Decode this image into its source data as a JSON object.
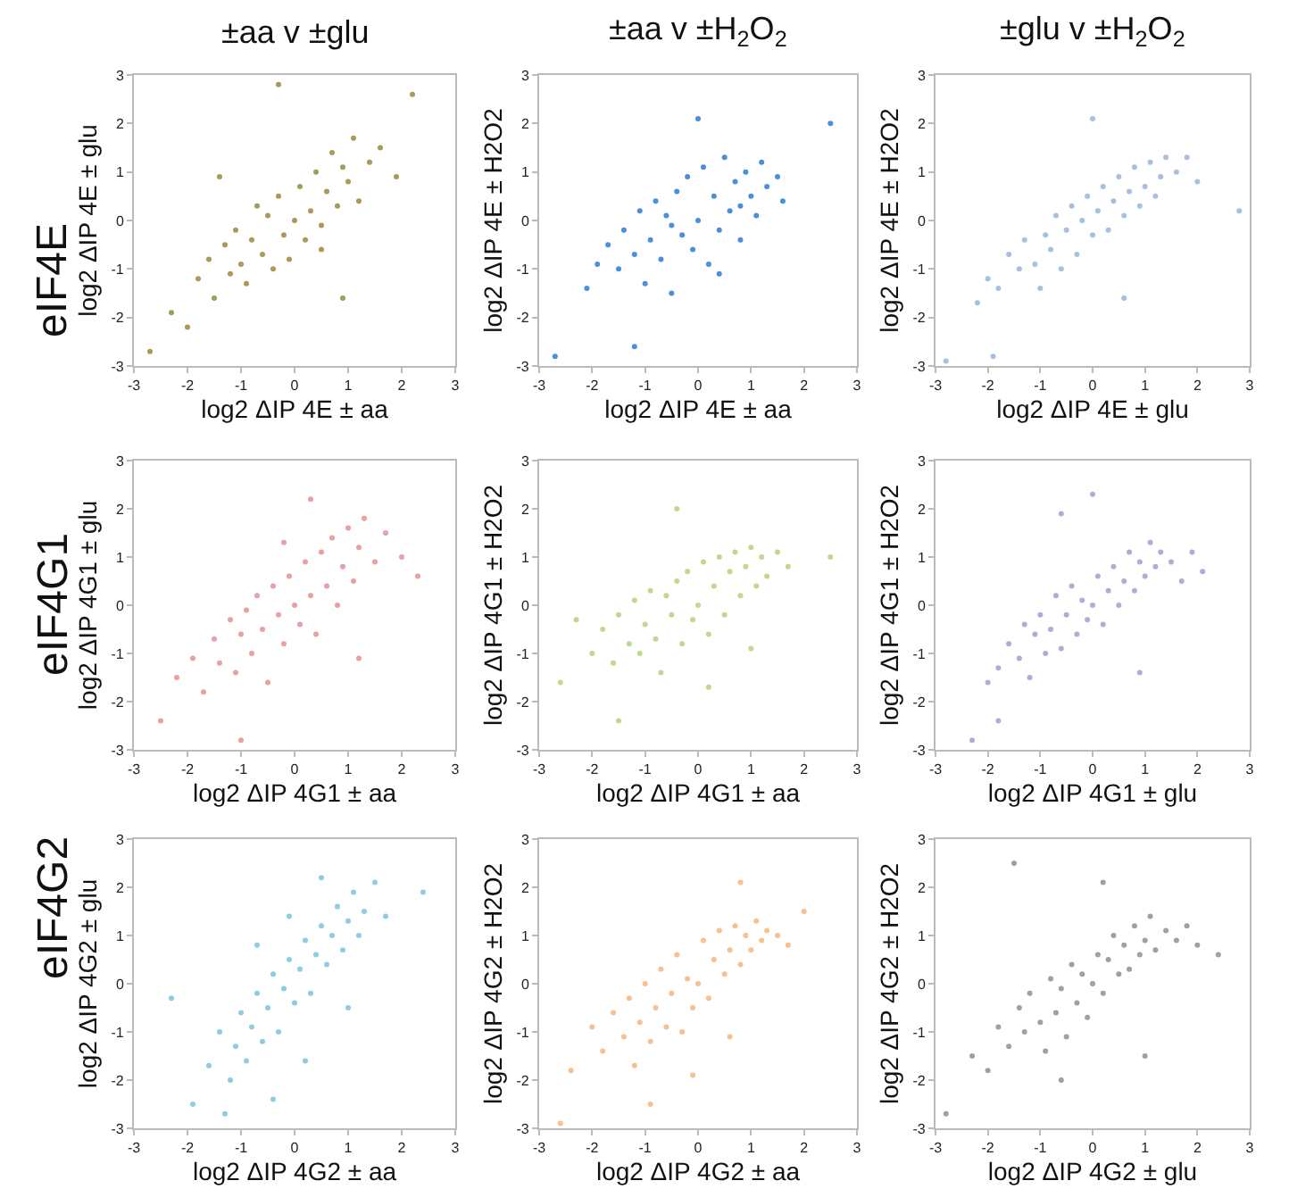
{
  "chart_data": [
    {
      "type": "scatter",
      "title": "±aa v ±glu",
      "annotations": [
        "eIF4E"
      ],
      "xlabel": "log2 ΔIP 4E ± aa",
      "ylabel": "log2 ΔIP 4E ± glu",
      "color": "#a89a5a",
      "marker": "circle",
      "xlim": [
        -3,
        3
      ],
      "ylim": [
        -3,
        3
      ],
      "xticks": [
        -3,
        -2,
        -1,
        0,
        1,
        2,
        3
      ],
      "yticks": [
        -3,
        -2,
        -1,
        0,
        1,
        2,
        3
      ],
      "x": [
        -2.7,
        -2.3,
        -2.0,
        -1.8,
        -1.6,
        -1.5,
        -1.3,
        -1.2,
        -1.1,
        -1.0,
        -0.9,
        -0.8,
        -0.7,
        -0.6,
        -0.5,
        -0.4,
        -0.3,
        -0.2,
        -0.1,
        0.0,
        0.1,
        0.2,
        0.3,
        0.4,
        0.5,
        0.6,
        0.7,
        0.8,
        0.9,
        1.0,
        1.1,
        1.2,
        1.4,
        1.6,
        1.9,
        2.2,
        -0.3,
        0.9,
        -1.4,
        0.5
      ],
      "values": [
        -2.7,
        -1.9,
        -2.2,
        -1.2,
        -0.8,
        -1.6,
        -0.5,
        -1.1,
        -0.2,
        -0.9,
        -1.3,
        -0.4,
        0.3,
        -0.7,
        0.1,
        -1.0,
        0.5,
        -0.3,
        -0.8,
        0.0,
        0.7,
        -0.4,
        0.2,
        1.0,
        -0.1,
        0.6,
        1.4,
        0.3,
        1.1,
        0.8,
        1.7,
        0.4,
        1.2,
        1.5,
        0.9,
        2.6,
        2.8,
        -1.6,
        0.9,
        -0.6
      ]
    },
    {
      "type": "scatter",
      "title": "±aa v ±H$_{2}$O$_{2}$",
      "xlabel": "log2 ΔIP 4E ± aa",
      "ylabel": "log2 ΔIP 4E ± H2O2",
      "color": "#4a90d9",
      "marker": "circle",
      "xlim": [
        -3,
        3
      ],
      "ylim": [
        -3,
        3
      ],
      "xticks": [
        -3,
        -2,
        -1,
        0,
        1,
        2,
        3
      ],
      "yticks": [
        -3,
        -2,
        -1,
        0,
        1,
        2,
        3
      ],
      "x": [
        -2.7,
        -2.1,
        -1.9,
        -1.7,
        -1.5,
        -1.4,
        -1.2,
        -1.1,
        -1.0,
        -0.9,
        -0.8,
        -0.7,
        -0.6,
        -0.5,
        -0.4,
        -0.3,
        -0.2,
        -0.1,
        0.0,
        0.1,
        0.2,
        0.3,
        0.4,
        0.5,
        0.6,
        0.7,
        0.8,
        0.9,
        1.0,
        1.1,
        1.2,
        1.3,
        1.5,
        1.6,
        2.5,
        -1.2,
        0.0,
        0.4,
        -0.5,
        0.8
      ],
      "values": [
        -2.8,
        -1.4,
        -0.9,
        -0.5,
        -1.0,
        -0.2,
        -0.7,
        0.2,
        -1.3,
        -0.4,
        0.4,
        -0.8,
        0.1,
        -1.5,
        0.6,
        -0.3,
        0.9,
        -0.6,
        0.0,
        1.1,
        -0.9,
        0.5,
        -0.2,
        1.3,
        0.2,
        0.8,
        -0.4,
        1.0,
        0.5,
        0.1,
        1.2,
        0.7,
        0.9,
        0.4,
        2.0,
        -2.6,
        2.1,
        -1.1,
        -0.1,
        0.3
      ]
    },
    {
      "type": "scatter",
      "title": "±glu v ±H$_{2}$O$_{2}$",
      "xlabel": "log2 ΔIP 4E ± glu",
      "ylabel": "log2 ΔIP 4E ± H2O2",
      "color": "#a8c0e0",
      "marker": "circle",
      "xlim": [
        -3,
        3
      ],
      "ylim": [
        -3,
        3
      ],
      "xticks": [
        -3,
        -2,
        -1,
        0,
        1,
        2,
        3
      ],
      "yticks": [
        -3,
        -2,
        -1,
        0,
        1,
        2,
        3
      ],
      "x": [
        -2.8,
        -2.2,
        -2.0,
        -1.8,
        -1.6,
        -1.4,
        -1.3,
        -1.1,
        -1.0,
        -0.9,
        -0.8,
        -0.7,
        -0.6,
        -0.5,
        -0.4,
        -0.3,
        -0.2,
        -0.1,
        0.0,
        0.1,
        0.2,
        0.3,
        0.4,
        0.5,
        0.6,
        0.7,
        0.8,
        0.9,
        1.0,
        1.1,
        1.2,
        1.3,
        1.4,
        1.6,
        1.8,
        2.0,
        -1.9,
        0.6,
        0.0,
        2.8
      ],
      "values": [
        -2.9,
        -1.7,
        -1.2,
        -1.4,
        -0.7,
        -1.0,
        -0.4,
        -0.9,
        -1.4,
        -0.3,
        -0.6,
        0.1,
        -1.0,
        -0.2,
        0.3,
        -0.7,
        0.0,
        0.5,
        -0.3,
        0.2,
        0.7,
        -0.2,
        0.4,
        0.9,
        0.1,
        0.6,
        1.1,
        0.3,
        0.7,
        1.2,
        0.5,
        0.9,
        1.3,
        1.0,
        1.3,
        0.8,
        -2.8,
        -1.6,
        2.1,
        0.2
      ]
    },
    {
      "type": "scatter",
      "annotations": [
        "eIF4G1"
      ],
      "xlabel": "log2 ΔIP 4G1 ± aa",
      "ylabel": "log2 ΔIP 4G1 ± glu",
      "color": "#e8a0a0",
      "marker": "circle",
      "xlim": [
        -3,
        3
      ],
      "ylim": [
        -3,
        3
      ],
      "xticks": [
        -3,
        -2,
        -1,
        0,
        1,
        2,
        3
      ],
      "yticks": [
        -3,
        -2,
        -1,
        0,
        1,
        2,
        3
      ],
      "x": [
        -2.5,
        -2.2,
        -1.9,
        -1.7,
        -1.5,
        -1.4,
        -1.2,
        -1.1,
        -1.0,
        -0.9,
        -0.8,
        -0.7,
        -0.6,
        -0.5,
        -0.4,
        -0.3,
        -0.2,
        -0.1,
        0.0,
        0.1,
        0.2,
        0.3,
        0.4,
        0.5,
        0.6,
        0.7,
        0.8,
        0.9,
        1.0,
        1.1,
        1.2,
        1.3,
        1.5,
        1.7,
        2.0,
        2.3,
        -1.0,
        1.2,
        0.3,
        -0.2
      ],
      "values": [
        -2.4,
        -1.5,
        -1.1,
        -1.8,
        -0.7,
        -1.2,
        -0.3,
        -1.4,
        -0.6,
        -0.1,
        -1.0,
        0.2,
        -0.5,
        -1.6,
        0.4,
        -0.2,
        -0.8,
        0.6,
        0.0,
        -0.4,
        0.9,
        0.2,
        -0.6,
        1.1,
        0.4,
        1.4,
        0.0,
        0.8,
        1.6,
        0.5,
        1.2,
        1.8,
        0.9,
        1.5,
        1.0,
        0.6,
        -2.8,
        -1.1,
        2.2,
        1.3
      ]
    },
    {
      "type": "scatter",
      "xlabel": "log2 ΔIP 4G1 ± aa",
      "ylabel": "log2 ΔIP 4G1 ± H2O2",
      "color": "#c0d890",
      "marker": "circle",
      "xlim": [
        -3,
        3
      ],
      "ylim": [
        -3,
        3
      ],
      "xticks": [
        -3,
        -2,
        -1,
        0,
        1,
        2,
        3
      ],
      "yticks": [
        -3,
        -2,
        -1,
        0,
        1,
        2,
        3
      ],
      "x": [
        -2.6,
        -2.0,
        -1.8,
        -1.6,
        -1.5,
        -1.3,
        -1.2,
        -1.1,
        -1.0,
        -0.9,
        -0.8,
        -0.7,
        -0.6,
        -0.5,
        -0.4,
        -0.3,
        -0.2,
        -0.1,
        0.0,
        0.1,
        0.2,
        0.3,
        0.4,
        0.5,
        0.6,
        0.7,
        0.8,
        0.9,
        1.0,
        1.1,
        1.2,
        1.3,
        1.5,
        1.7,
        2.5,
        -1.5,
        -0.4,
        0.2,
        1.0,
        -2.3
      ],
      "values": [
        -1.6,
        -1.0,
        -0.5,
        -1.2,
        -0.2,
        -0.8,
        0.1,
        -1.0,
        -0.4,
        0.3,
        -0.7,
        -1.4,
        0.2,
        -0.2,
        0.5,
        -0.8,
        0.7,
        -0.3,
        0.0,
        0.9,
        -0.6,
        0.4,
        1.0,
        -0.2,
        0.7,
        1.1,
        0.2,
        0.8,
        1.2,
        0.4,
        1.0,
        0.6,
        1.1,
        0.8,
        1.0,
        -2.4,
        2.0,
        -1.7,
        -0.9,
        -0.3
      ]
    },
    {
      "type": "scatter",
      "xlabel": "log2 ΔIP 4G1 ± glu",
      "ylabel": "log2 ΔIP 4G1 ± H2O2",
      "color": "#b8a8d8",
      "marker": "circle",
      "xlim": [
        -3,
        3
      ],
      "ylim": [
        -3,
        3
      ],
      "xticks": [
        -3,
        -2,
        -1,
        0,
        1,
        2,
        3
      ],
      "yticks": [
        -3,
        -2,
        -1,
        0,
        1,
        2,
        3
      ],
      "x": [
        -2.3,
        -2.0,
        -1.8,
        -1.6,
        -1.4,
        -1.3,
        -1.2,
        -1.1,
        -1.0,
        -0.9,
        -0.8,
        -0.7,
        -0.6,
        -0.5,
        -0.4,
        -0.3,
        -0.2,
        -0.1,
        0.0,
        0.1,
        0.2,
        0.3,
        0.4,
        0.5,
        0.6,
        0.7,
        0.8,
        0.9,
        1.0,
        1.1,
        1.2,
        1.3,
        1.5,
        1.7,
        1.9,
        2.1,
        -1.8,
        0.9,
        0.0,
        -0.6
      ],
      "values": [
        -2.8,
        -1.6,
        -1.3,
        -0.8,
        -1.1,
        -0.4,
        -1.5,
        -0.6,
        -0.2,
        -1.0,
        -0.5,
        0.2,
        -0.9,
        -0.2,
        0.4,
        -0.6,
        0.1,
        -0.3,
        0.0,
        0.6,
        -0.4,
        0.3,
        0.8,
        0.0,
        0.5,
        1.1,
        0.3,
        0.9,
        0.6,
        1.3,
        0.8,
        1.1,
        0.9,
        0.5,
        1.1,
        0.7,
        -2.4,
        -1.4,
        2.3,
        1.9
      ]
    },
    {
      "type": "scatter",
      "annotations": [
        "eIF4G2"
      ],
      "xlabel": "log2 ΔIP 4G2 ± aa",
      "ylabel": "log2 ΔIP 4G2 ± glu",
      "color": "#90cce0",
      "marker": "circle",
      "xlim": [
        -3,
        3
      ],
      "ylim": [
        -3,
        3
      ],
      "xticks": [
        -3,
        -2,
        -1,
        0,
        1,
        2,
        3
      ],
      "yticks": [
        -3,
        -2,
        -1,
        0,
        1,
        2,
        3
      ],
      "x": [
        -1.9,
        -1.6,
        -1.4,
        -1.2,
        -1.1,
        -1.0,
        -0.9,
        -0.8,
        -0.7,
        -0.6,
        -0.5,
        -0.4,
        -0.3,
        -0.2,
        -0.1,
        0.0,
        0.1,
        0.2,
        0.3,
        0.4,
        0.5,
        0.6,
        0.7,
        0.8,
        0.9,
        1.0,
        1.1,
        1.2,
        1.3,
        1.5,
        1.7,
        2.4,
        -1.3,
        -0.4,
        0.5,
        -2.3,
        -0.7,
        1.0,
        0.2,
        -0.1
      ],
      "values": [
        -2.5,
        -1.7,
        -1.0,
        -2.0,
        -1.3,
        -0.6,
        -1.6,
        -0.9,
        -0.2,
        -1.2,
        -0.5,
        0.2,
        -1.0,
        -0.1,
        0.5,
        -0.4,
        0.3,
        0.9,
        -0.2,
        0.6,
        1.2,
        0.4,
        1.0,
        1.6,
        0.7,
        1.3,
        1.9,
        1.0,
        1.5,
        2.1,
        1.4,
        1.9,
        -2.7,
        -2.4,
        2.2,
        -0.3,
        0.8,
        -0.5,
        -1.6,
        1.4
      ]
    },
    {
      "type": "scatter",
      "xlabel": "log2 ΔIP 4G2 ± aa",
      "ylabel": "log2 ΔIP 4G2 ± H2O2",
      "color": "#f8c090",
      "marker": "circle",
      "xlim": [
        -3,
        3
      ],
      "ylim": [
        -3,
        3
      ],
      "xticks": [
        -3,
        -2,
        -1,
        0,
        1,
        2,
        3
      ],
      "yticks": [
        -3,
        -2,
        -1,
        0,
        1,
        2,
        3
      ],
      "x": [
        -2.4,
        -2.0,
        -1.8,
        -1.6,
        -1.4,
        -1.3,
        -1.2,
        -1.1,
        -1.0,
        -0.9,
        -0.8,
        -0.7,
        -0.6,
        -0.5,
        -0.4,
        -0.3,
        -0.2,
        -0.1,
        0.0,
        0.1,
        0.2,
        0.3,
        0.4,
        0.5,
        0.6,
        0.7,
        0.8,
        0.9,
        1.0,
        1.1,
        1.2,
        1.3,
        1.5,
        1.7,
        -0.9,
        0.8,
        -0.1,
        -2.6,
        0.6,
        2.0
      ],
      "values": [
        -1.8,
        -0.9,
        -1.4,
        -0.6,
        -1.1,
        -0.3,
        -1.7,
        -0.8,
        0.0,
        -1.2,
        -0.5,
        0.3,
        -0.9,
        -0.2,
        0.6,
        -1.0,
        0.1,
        -0.5,
        0.0,
        0.9,
        -0.3,
        0.5,
        1.1,
        0.2,
        0.7,
        1.2,
        0.4,
        1.0,
        0.7,
        1.3,
        0.9,
        1.1,
        1.0,
        0.8,
        -2.5,
        2.1,
        -1.9,
        -2.9,
        -1.1,
        1.5
      ]
    },
    {
      "type": "scatter",
      "xlabel": "log2 ΔIP 4G2 ± glu",
      "ylabel": "log2 ΔIP 4G2 ± H2O2",
      "color": "#a0a0a0",
      "marker": "circle",
      "xlim": [
        -3,
        3
      ],
      "ylim": [
        -3,
        3
      ],
      "xticks": [
        -3,
        -2,
        -1,
        0,
        1,
        2,
        3
      ],
      "yticks": [
        -3,
        -2,
        -1,
        0,
        1,
        2,
        3
      ],
      "x": [
        -2.8,
        -2.3,
        -2.0,
        -1.8,
        -1.6,
        -1.4,
        -1.3,
        -1.2,
        -1.0,
        -0.9,
        -0.8,
        -0.7,
        -0.6,
        -0.5,
        -0.4,
        -0.3,
        -0.2,
        -0.1,
        0.0,
        0.1,
        0.2,
        0.3,
        0.4,
        0.5,
        0.6,
        0.7,
        0.8,
        0.9,
        1.0,
        1.1,
        1.2,
        1.4,
        1.6,
        1.8,
        2.0,
        2.4,
        -1.5,
        0.2,
        -0.6,
        1.0
      ],
      "values": [
        -2.7,
        -1.5,
        -1.8,
        -0.9,
        -1.3,
        -0.5,
        -1.0,
        -0.2,
        -0.8,
        -1.4,
        0.1,
        -0.6,
        -0.1,
        -1.1,
        0.4,
        -0.4,
        0.2,
        -0.7,
        0.0,
        0.6,
        -0.2,
        0.5,
        1.0,
        0.2,
        0.8,
        0.3,
        1.2,
        0.6,
        0.9,
        1.4,
        0.7,
        1.1,
        0.9,
        1.2,
        0.8,
        0.6,
        2.5,
        2.1,
        -2.0,
        -1.5
      ]
    }
  ]
}
